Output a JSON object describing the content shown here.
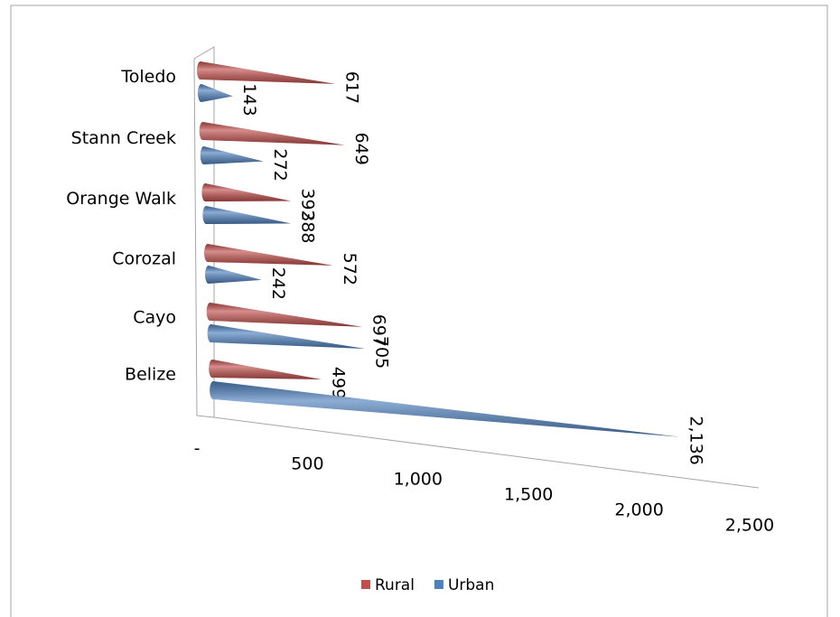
{
  "chart_data": {
    "type": "bar",
    "orientation": "horizontal",
    "shape": "cone",
    "categories": [
      "Toledo",
      "Stann Creek",
      "Orange Walk",
      "Corozal",
      "Cayo",
      "Belize"
    ],
    "series": [
      {
        "name": "Rural",
        "color": "#c0504d",
        "values": [
          617,
          649,
          392,
          572,
          697,
          499
        ]
      },
      {
        "name": "Urban",
        "color": "#4f81bd",
        "values": [
          143,
          272,
          388,
          242,
          705,
          2136
        ],
        "value_labels": [
          "143",
          "272",
          "388",
          "242",
          "705",
          "2,136"
        ]
      }
    ],
    "xlim": [
      0,
      2500
    ],
    "xticks": [
      {
        "value": 0,
        "label": "-"
      },
      500,
      {
        "value": 1000,
        "label": "1,000"
      },
      {
        "value": 1500,
        "label": "1,500"
      },
      {
        "value": 2000,
        "label": "2,000"
      },
      {
        "value": 2500,
        "label": "2,500"
      }
    ],
    "legend": "bottom"
  }
}
